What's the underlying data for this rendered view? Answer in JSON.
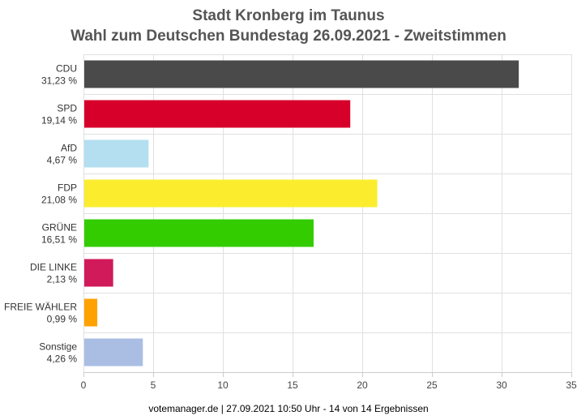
{
  "chart_data": {
    "type": "bar",
    "orientation": "horizontal",
    "title": "Stadt Kronberg im Taunus",
    "subtitle": "Wahl zum Deutschen Bundestag 26.09.2021  - Zweitstimmen",
    "categories": [
      "CDU",
      "SPD",
      "AfD",
      "FDP",
      "GRÜNE",
      "DIE LINKE",
      "FREIE WÄHLER",
      "Sonstige"
    ],
    "value_labels": [
      "31,23 %",
      "19,14 %",
      "4,67 %",
      "21,08 %",
      "16,51 %",
      "2,13 %",
      "0,99 %",
      "4,26 %"
    ],
    "values": [
      31.23,
      19.14,
      4.67,
      21.08,
      16.51,
      2.13,
      0.99,
      4.26
    ],
    "colors": [
      "#4a4a4a",
      "#d7002a",
      "#b3dff0",
      "#fbed2e",
      "#33cc00",
      "#d11a5a",
      "#ffa200",
      "#aabee4"
    ],
    "xlim": [
      0,
      35
    ],
    "xticks": [
      0,
      5,
      10,
      15,
      20,
      25,
      30,
      35
    ],
    "grid": true,
    "legend": "none"
  },
  "footer": "votemanager.de | 27.09.2021 10:50 Uhr - 14 von 14 Ergebnissen"
}
